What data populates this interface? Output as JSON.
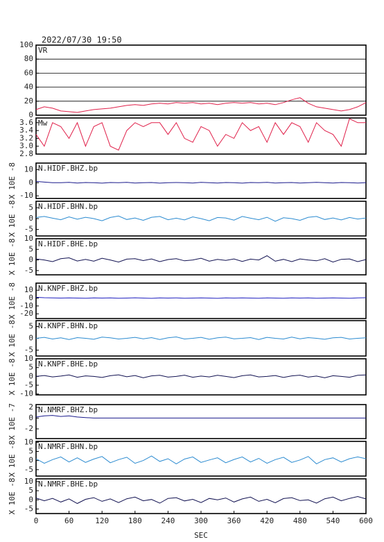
{
  "header": {
    "title": "2022/07/30 19:50",
    "xlabel": "SEC"
  },
  "chart_data": [
    {
      "type": "line",
      "title": "VR",
      "color": "#e0204a",
      "grid": true,
      "ylim": [
        0,
        100
      ],
      "yticks": [
        0,
        20,
        40,
        60,
        80,
        100
      ],
      "xlim": [
        0,
        600
      ],
      "x": [
        0,
        15,
        30,
        45,
        60,
        75,
        90,
        105,
        120,
        135,
        150,
        165,
        180,
        195,
        210,
        225,
        240,
        255,
        270,
        285,
        300,
        315,
        330,
        345,
        360,
        375,
        390,
        405,
        420,
        435,
        450,
        465,
        480,
        495,
        510,
        525,
        540,
        555,
        570,
        585,
        600
      ],
      "values": [
        8,
        12,
        10,
        6,
        5,
        4,
        6,
        8,
        9,
        10,
        12,
        14,
        15,
        14,
        16,
        17,
        16,
        18,
        17,
        18,
        16,
        17,
        15,
        17,
        18,
        17,
        18,
        16,
        17,
        15,
        18,
        22,
        25,
        17,
        12,
        10,
        8,
        6,
        8,
        12,
        18
      ]
    },
    {
      "type": "line",
      "title": "Mw",
      "color": "#e0204a",
      "ylim": [
        2.8,
        3.72
      ],
      "yticks": [
        2.8,
        {
          "value": 3,
          "label": "3.0"
        },
        3.2,
        3.4,
        3.6
      ],
      "xlim": [
        0,
        600
      ],
      "x": [
        0,
        15,
        30,
        45,
        60,
        75,
        90,
        105,
        120,
        135,
        150,
        165,
        180,
        195,
        210,
        225,
        240,
        255,
        270,
        285,
        300,
        315,
        330,
        345,
        360,
        375,
        390,
        405,
        420,
        435,
        450,
        465,
        480,
        495,
        510,
        525,
        540,
        555,
        570,
        585,
        600
      ],
      "values": [
        3.3,
        3.0,
        3.6,
        3.5,
        3.2,
        3.6,
        3.0,
        3.5,
        3.6,
        3.0,
        2.9,
        3.4,
        3.6,
        3.5,
        3.6,
        3.6,
        3.3,
        3.6,
        3.2,
        3.1,
        3.5,
        3.4,
        3.0,
        3.3,
        3.2,
        3.6,
        3.4,
        3.5,
        3.1,
        3.6,
        3.3,
        3.6,
        3.5,
        3.1,
        3.6,
        3.4,
        3.3,
        3.0,
        3.7,
        3.6,
        3.6
      ]
    },
    {
      "type": "line",
      "title": "N.HIDF.BHZ.bp",
      "ylabel": "X 10E -8",
      "color": "#1a1a8c",
      "ylim": [
        -12,
        15
      ],
      "yticks": [
        -10,
        0,
        10
      ],
      "xlim": [
        0,
        600
      ],
      "x": [
        0,
        15,
        30,
        45,
        60,
        75,
        90,
        105,
        120,
        135,
        150,
        165,
        180,
        195,
        210,
        225,
        240,
        255,
        270,
        285,
        300,
        315,
        330,
        345,
        360,
        375,
        390,
        405,
        420,
        435,
        450,
        465,
        480,
        495,
        510,
        525,
        540,
        555,
        570,
        585,
        600
      ],
      "values": [
        1,
        0.5,
        0,
        0,
        0.3,
        -0.2,
        0.2,
        0,
        -0.3,
        0.2,
        0,
        0.3,
        -0.2,
        0,
        0.2,
        -0.3,
        0,
        0.2,
        0,
        -0.2,
        0.3,
        0,
        -0.2,
        0.2,
        0,
        -0.3,
        0.2,
        0,
        0.3,
        -0.2,
        0,
        0.2,
        -0.2,
        0,
        0.3,
        0,
        -0.2,
        0.2,
        0,
        -0.2,
        0
      ]
    },
    {
      "type": "line",
      "title": "N.HIDF.BHN.bp",
      "ylabel": "X 10E -8",
      "color": "#2a8ad0",
      "ylim": [
        -8,
        8
      ],
      "yticks": [
        -5,
        0,
        5
      ],
      "xlim": [
        0,
        600
      ],
      "x": [
        0,
        15,
        30,
        45,
        60,
        75,
        90,
        105,
        120,
        135,
        150,
        165,
        180,
        195,
        210,
        225,
        240,
        255,
        270,
        285,
        300,
        315,
        330,
        345,
        360,
        375,
        390,
        405,
        420,
        435,
        450,
        465,
        480,
        495,
        510,
        525,
        540,
        555,
        570,
        585,
        600
      ],
      "values": [
        0.5,
        1,
        0.2,
        -0.5,
        0.8,
        -0.3,
        0.6,
        0,
        -1,
        0.5,
        1.2,
        -0.4,
        0.3,
        -0.8,
        0.6,
        1,
        -0.5,
        0.2,
        -0.6,
        0.8,
        0,
        -1,
        0.5,
        0.3,
        -0.7,
        1,
        0.2,
        -0.5,
        0.6,
        -1.2,
        0.4,
        0,
        -0.8,
        0.6,
        1,
        -0.4,
        0.3,
        -0.6,
        0.5,
        -0.2,
        0.3
      ]
    },
    {
      "type": "line",
      "title": "N.HIDF.BHE.bp",
      "ylabel": "X 10E -8",
      "color": "#101050",
      "ylim": [
        -7,
        10
      ],
      "yticks": [
        -5,
        0,
        5,
        10
      ],
      "xlim": [
        0,
        600
      ],
      "x": [
        0,
        15,
        30,
        45,
        60,
        75,
        90,
        105,
        120,
        135,
        150,
        165,
        180,
        195,
        210,
        225,
        240,
        255,
        270,
        285,
        300,
        315,
        330,
        345,
        360,
        375,
        390,
        405,
        420,
        435,
        450,
        465,
        480,
        495,
        510,
        525,
        540,
        555,
        570,
        585,
        600
      ],
      "values": [
        0.5,
        0,
        -0.8,
        0.6,
        1,
        -0.5,
        0.3,
        -0.6,
        0.8,
        0,
        -1,
        0.4,
        0.6,
        -0.3,
        0.5,
        -0.8,
        0.2,
        0.6,
        -0.4,
        0,
        0.8,
        -0.6,
        0.3,
        -0.2,
        0.5,
        -0.7,
        0.4,
        0,
        2,
        -0.6,
        0.3,
        -0.8,
        0.5,
        0,
        -0.4,
        0.6,
        -1,
        0.3,
        0.5,
        -0.8,
        0.2
      ]
    },
    {
      "type": "line",
      "title": "N.KNPF.BHZ.bp",
      "ylabel": "X 10E -8",
      "color": "#2020c0",
      "ylim": [
        -26,
        19
      ],
      "yticks": [
        -20,
        -10,
        0,
        10
      ],
      "xlim": [
        0,
        600
      ],
      "x": [
        0,
        15,
        30,
        45,
        60,
        75,
        90,
        105,
        120,
        135,
        150,
        165,
        180,
        195,
        210,
        225,
        240,
        255,
        270,
        285,
        300,
        315,
        330,
        345,
        360,
        375,
        390,
        405,
        420,
        435,
        450,
        465,
        480,
        495,
        510,
        525,
        540,
        555,
        570,
        585,
        600
      ],
      "values": [
        1,
        0.5,
        0.2,
        0,
        0.3,
        0,
        -0.2,
        0.3,
        0,
        0.2,
        -0.2,
        0,
        0.4,
        0,
        -0.3,
        0.2,
        0,
        0.3,
        -0.2,
        0,
        0.2,
        0,
        -0.3,
        0.2,
        0,
        0.3,
        0,
        -0.2,
        0.2,
        0,
        -0.2,
        0.3,
        0,
        0.2,
        -0.2,
        0,
        0.3,
        0,
        -0.2,
        0.2,
        0.5
      ]
    },
    {
      "type": "line",
      "title": "N.KNPF.BHN.bp",
      "ylabel": "X 10E -8",
      "color": "#2a8ad0",
      "ylim": [
        -7.5,
        7.5
      ],
      "yticks": [
        -5,
        0,
        5
      ],
      "xlim": [
        0,
        600
      ],
      "x": [
        0,
        15,
        30,
        45,
        60,
        75,
        90,
        105,
        120,
        135,
        150,
        165,
        180,
        195,
        210,
        225,
        240,
        255,
        270,
        285,
        300,
        315,
        330,
        345,
        360,
        375,
        390,
        405,
        420,
        435,
        450,
        465,
        480,
        495,
        510,
        525,
        540,
        555,
        570,
        585,
        600
      ],
      "values": [
        0,
        0.4,
        -0.3,
        0.2,
        -0.5,
        0.3,
        0,
        -0.4,
        0.5,
        0.2,
        -0.3,
        0,
        0.4,
        -0.2,
        0.3,
        -0.5,
        0.2,
        0.6,
        -0.3,
        0,
        0.4,
        -0.4,
        0.2,
        0.5,
        -0.2,
        0,
        0.3,
        -0.5,
        0.4,
        0,
        -0.3,
        0.5,
        -0.2,
        0.3,
        0,
        -0.4,
        0.2,
        0.4,
        -0.3,
        0,
        0.2
      ]
    },
    {
      "type": "line",
      "title": "N.KNPF.BHE.bp",
      "ylabel": "X 10E -8",
      "color": "#101050",
      "ylim": [
        -10.5,
        10
      ],
      "yticks": [
        -10,
        -5,
        0,
        5,
        10
      ],
      "xlim": [
        0,
        600
      ],
      "x": [
        0,
        15,
        30,
        45,
        60,
        75,
        90,
        105,
        120,
        135,
        150,
        165,
        180,
        195,
        210,
        225,
        240,
        255,
        270,
        285,
        300,
        315,
        330,
        345,
        360,
        375,
        390,
        405,
        420,
        435,
        450,
        465,
        480,
        495,
        510,
        525,
        540,
        555,
        570,
        585,
        600
      ],
      "values": [
        0,
        0.5,
        -0.3,
        0.2,
        0.8,
        -0.5,
        0.3,
        0,
        -0.6,
        0.4,
        0.9,
        -0.2,
        0.5,
        -0.8,
        0.3,
        0.6,
        -0.4,
        0,
        0.7,
        -0.5,
        0.2,
        -0.3,
        0.6,
        0,
        -0.7,
        0.4,
        0.8,
        -0.3,
        0,
        0.5,
        -0.6,
        0.3,
        0.7,
        -0.4,
        0.2,
        -0.8,
        0.4,
        0,
        -0.5,
        0.6,
        0.8
      ]
    },
    {
      "type": "line",
      "title": "N.NMRF.BHZ.bp",
      "ylabel": "X 10E -7",
      "color": "#1a1a8c",
      "ylim": [
        -3.8,
        2.5
      ],
      "yticks": [
        -2,
        0,
        2
      ],
      "xlim": [
        0,
        600
      ],
      "x": [
        0,
        15,
        30,
        45,
        60,
        75,
        90,
        105,
        120,
        135,
        150,
        165,
        180,
        195,
        210,
        225,
        240,
        255,
        270,
        285,
        300,
        315,
        330,
        345,
        360,
        375,
        390,
        405,
        420,
        435,
        450,
        465,
        480,
        495,
        510,
        525,
        540,
        555,
        570,
        585,
        600
      ],
      "values": [
        0.2,
        0.4,
        0.5,
        0.3,
        0.4,
        0.2,
        0.1,
        0,
        0,
        0,
        0,
        0,
        0,
        0,
        0,
        0,
        0,
        0,
        0,
        0,
        0,
        0,
        0,
        0,
        0,
        0,
        0,
        0,
        0,
        0,
        0,
        0,
        0,
        0,
        0,
        0,
        0,
        0,
        0,
        0,
        0
      ]
    },
    {
      "type": "line",
      "title": "N.NMRF.BHN.bp",
      "ylabel": "X 10E -8",
      "color": "#2a8ad0",
      "ylim": [
        -8.5,
        10.5
      ],
      "yticks": [
        -5,
        0,
        5,
        10
      ],
      "xlim": [
        0,
        600
      ],
      "x": [
        0,
        15,
        30,
        45,
        60,
        75,
        90,
        105,
        120,
        135,
        150,
        165,
        180,
        195,
        210,
        225,
        240,
        255,
        270,
        285,
        300,
        315,
        330,
        345,
        360,
        375,
        390,
        405,
        420,
        435,
        450,
        465,
        480,
        495,
        510,
        525,
        540,
        555,
        570,
        585,
        600
      ],
      "values": [
        1,
        -1.5,
        0.5,
        2,
        -0.8,
        1.5,
        -1,
        0.8,
        2.2,
        -1.2,
        0.5,
        1.8,
        -1.5,
        0,
        2.5,
        -0.5,
        1,
        -1.8,
        0.8,
        2,
        -1,
        0.3,
        1.5,
        -1.2,
        0.6,
        2,
        -0.8,
        1.2,
        -1.5,
        0.5,
        1.8,
        -1,
        0.3,
        2.2,
        -1.8,
        0.5,
        1.5,
        -0.8,
        1,
        2,
        1
      ]
    },
    {
      "type": "line",
      "title": "N.NMRF.BHE.bp",
      "ylabel": "X 10E -8",
      "color": "#101050",
      "ylim": [
        -7.5,
        11.5
      ],
      "yticks": [
        -5,
        0,
        5,
        10
      ],
      "xlim": [
        0,
        600
      ],
      "xticks": [
        0,
        60,
        120,
        180,
        240,
        300,
        360,
        420,
        480,
        540,
        600
      ],
      "x": [
        0,
        15,
        30,
        45,
        60,
        75,
        90,
        105,
        120,
        135,
        150,
        165,
        180,
        195,
        210,
        225,
        240,
        255,
        270,
        285,
        300,
        315,
        330,
        345,
        360,
        375,
        390,
        405,
        420,
        435,
        450,
        465,
        480,
        495,
        510,
        525,
        540,
        555,
        570,
        585,
        600
      ],
      "values": [
        1,
        -0.5,
        0.8,
        -1.2,
        0.5,
        -2,
        0.3,
        1.2,
        -0.8,
        0.5,
        -1.5,
        0.6,
        1.5,
        -0.5,
        0.2,
        -1.8,
        0.8,
        1.2,
        -0.6,
        0.3,
        -1.5,
        0.8,
        0,
        1,
        -1.2,
        0.5,
        1.5,
        -0.8,
        0.3,
        -1.6,
        0.7,
        1.2,
        -0.4,
        0,
        -1.8,
        0.6,
        1.5,
        -0.5,
        0.8,
        1.8,
        0.5
      ]
    }
  ]
}
